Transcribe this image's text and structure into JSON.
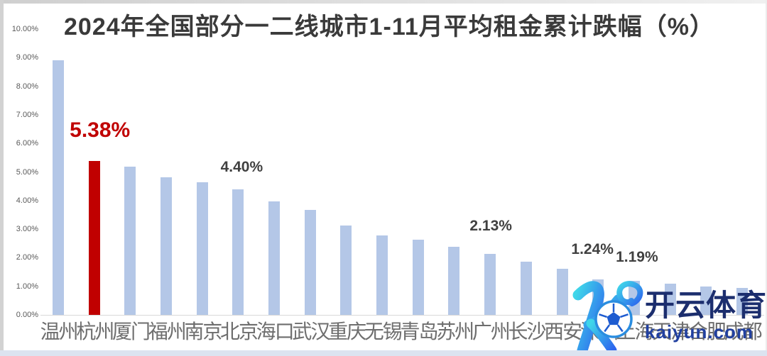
{
  "page": {
    "background": "#ffffff",
    "edge_top_color": "#cfcfcf",
    "edge_left_color": "#d2d2d2",
    "edge_right_color": "#ececec",
    "edge_bottom_color": "#dce3f0"
  },
  "chart_data": {
    "type": "bar",
    "title": "2024年全国部分一二线城市1-11月平均租金累计跌幅（%）",
    "title_color": "#3a3a3a",
    "xlabel": "",
    "ylabel": "",
    "unit": "%",
    "ylim": [
      0,
      10
    ],
    "ytick_step": 1,
    "yticks": [
      "0.00%",
      "1.00%",
      "2.00%",
      "3.00%",
      "4.00%",
      "5.00%",
      "6.00%",
      "7.00%",
      "8.00%",
      "9.00%",
      "10.00%"
    ],
    "grid": false,
    "legend": false,
    "axis_line_color": "#d9d9d9",
    "axis_text_color": "#595959",
    "xlabel_color": "#6e6e6e",
    "bar_color": "#b4c7e7",
    "highlight_index": 1,
    "highlight_color": "#c00000",
    "categories": [
      "温州",
      "杭州",
      "厦门",
      "福州",
      "南京",
      "北京",
      "海口",
      "武汉",
      "重庆",
      "无锡",
      "青岛",
      "苏州",
      "广州",
      "长沙",
      "西安",
      "深圳",
      "上海",
      "天津",
      "合肥",
      "成都"
    ],
    "values": [
      8.9,
      5.38,
      5.18,
      4.81,
      4.65,
      4.4,
      3.97,
      3.67,
      3.13,
      2.78,
      2.62,
      2.38,
      2.13,
      1.86,
      1.62,
      1.24,
      1.19,
      1.1,
      0.99,
      0.95
    ],
    "data_labels": [
      {
        "index": 1,
        "text": "5.38%",
        "color": "#c00000",
        "size": 30,
        "gap": 27,
        "dx": 8
      },
      {
        "index": 5,
        "text": "4.40%",
        "color": "#404040",
        "size": 21,
        "gap": 20,
        "dx": 5
      },
      {
        "index": 12,
        "text": "2.13%",
        "color": "#404040",
        "size": 21,
        "gap": 28,
        "dx": 1
      },
      {
        "index": 15,
        "text": "1.24%",
        "color": "#404040",
        "size": 21,
        "gap": 31,
        "dx": -8
      },
      {
        "index": 16,
        "text": "1.19%",
        "color": "#404040",
        "size": 21,
        "gap": 22,
        "dx": 4
      }
    ]
  },
  "watermark": {
    "brand": "开云体育",
    "domain": "kaiyun.com",
    "brand_color": "#1c2e6e",
    "domain_color": "#2140a0",
    "logo_name": "kaiyun-k-football-logo",
    "logo_gradient_start": "#3fd6e9",
    "logo_gradient_end": "#2d66ee",
    "football_ring_color": "#2a8de0",
    "football_pattern_color": "#1d5bd0"
  }
}
